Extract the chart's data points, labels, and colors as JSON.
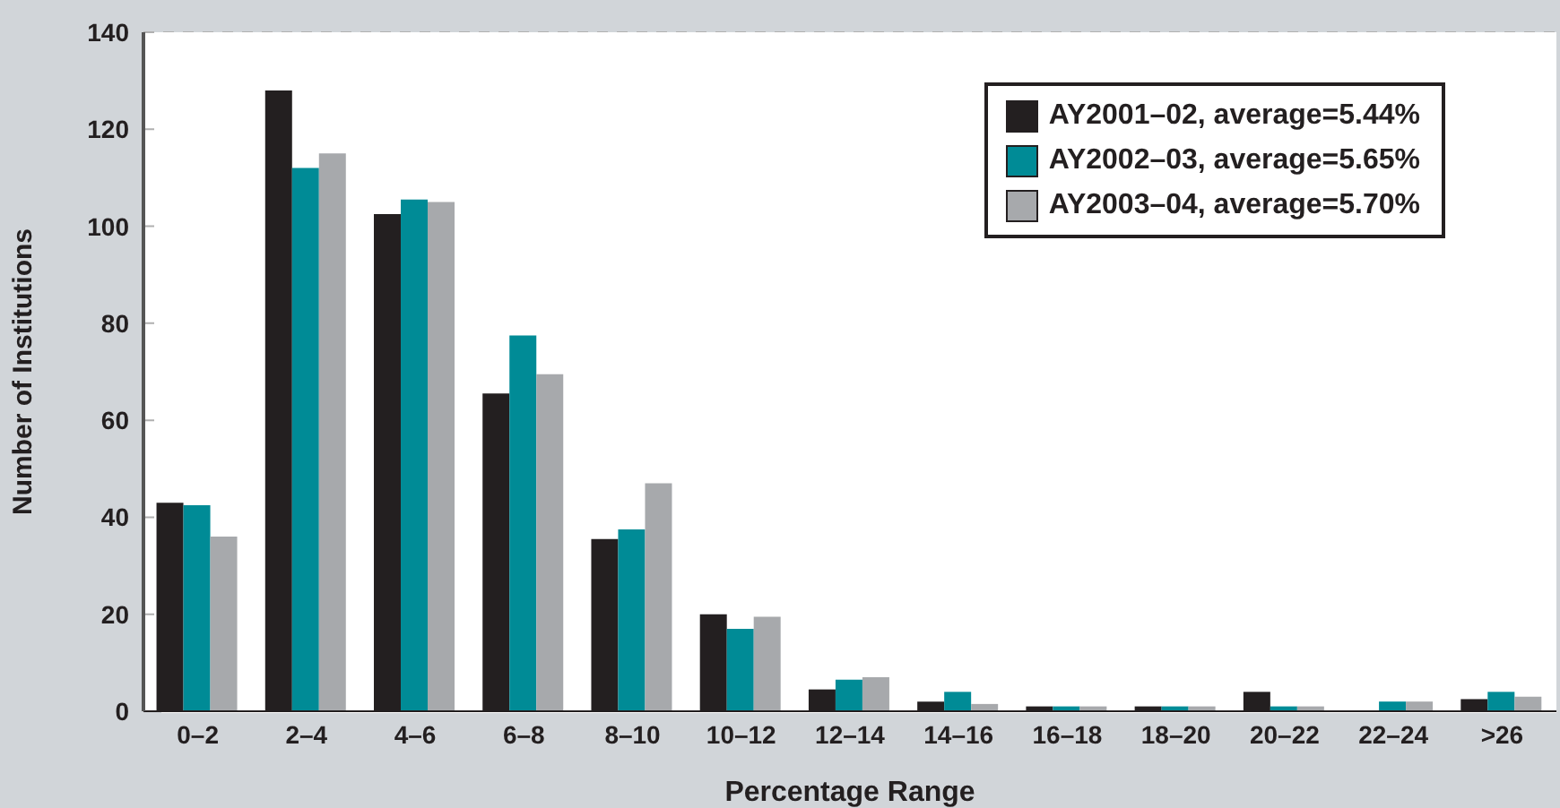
{
  "chart_data": {
    "type": "bar",
    "xlabel": "Percentage Range",
    "ylabel": "Number of Institutions",
    "categories": [
      "0–2",
      "2–4",
      "4–6",
      "6–8",
      "8–10",
      "10–12",
      "12–14",
      "14–16",
      "16–18",
      "18–20",
      "20–22",
      "22–24",
      ">26"
    ],
    "series": [
      {
        "name": "AY2001–02, average=5.44%",
        "color": "#231f20",
        "values": [
          43,
          128,
          102.5,
          65.5,
          35.5,
          20,
          4.5,
          2,
          1,
          1,
          4,
          0,
          2.5
        ]
      },
      {
        "name": "AY2002–03, average=5.65%",
        "color": "#008b96",
        "values": [
          42.5,
          112,
          105.5,
          77.5,
          37.5,
          17,
          6.5,
          4,
          1,
          1,
          1,
          2,
          4
        ]
      },
      {
        "name": "AY2003–04, average=5.70%",
        "color": "#a7a9ac",
        "values": [
          36,
          115,
          105,
          69.5,
          47,
          19.5,
          7,
          1.5,
          1,
          1,
          1,
          2,
          3
        ]
      }
    ],
    "ylim": [
      0,
      140
    ],
    "yticks": [
      0,
      20,
      40,
      60,
      80,
      100,
      120,
      140
    ],
    "grid": "y",
    "legend": "top right"
  }
}
